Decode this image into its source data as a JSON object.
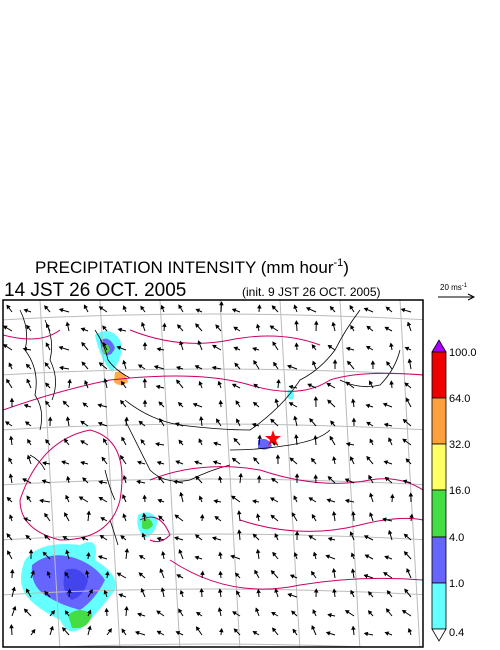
{
  "title": {
    "text": "PRECIPITATION INTENSITY (mm hour",
    "unit_exponent": "-1",
    "close": ")"
  },
  "valid_time": "14 JST 26 OCT. 2005",
  "init_time": "(init. 9 JST 26 OCT. 2005)",
  "wind_scale": {
    "text": "20 ms",
    "exponent": "-1"
  },
  "colorbar": {
    "labels": [
      "100.0",
      "64.0",
      "32.0",
      "16.0",
      "4.0",
      "1.0",
      "0.4"
    ]
  }
}
